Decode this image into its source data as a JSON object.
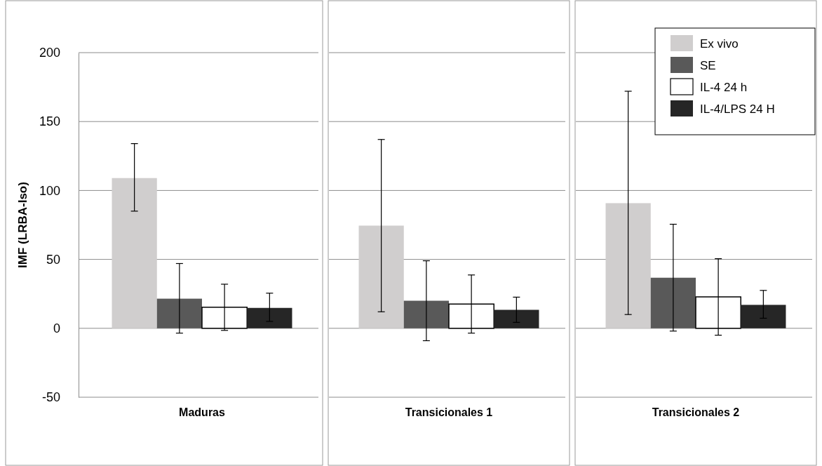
{
  "chart_data": {
    "type": "bar",
    "ylabel": "IMF (LRBA-Iso)",
    "categories": [
      "Maduras",
      "Transicionales 1",
      "Transicionales 2"
    ],
    "ylim": [
      -50,
      200
    ],
    "yticks": [
      -50,
      0,
      50,
      100,
      150,
      200
    ],
    "grid": "y",
    "legend": "top right",
    "series": [
      {
        "name": "Ex vivo",
        "color": "#d0cece",
        "values": [
          109,
          74.5,
          90.8
        ],
        "errors": [
          [
            85,
            134
          ],
          [
            12,
            137
          ],
          [
            10,
            172
          ]
        ]
      },
      {
        "name": "SE",
        "color": "#595959",
        "values": [
          21.5,
          20,
          36.7
        ],
        "errors": [
          [
            -3.5,
            47
          ],
          [
            -9,
            49
          ],
          [
            -2,
            75.5
          ]
        ]
      },
      {
        "name": "IL-4 24 h",
        "color": "#ffffff",
        "values": [
          15.3,
          17.6,
          22.8
        ],
        "errors": [
          [
            -1.5,
            32
          ],
          [
            -3.5,
            38.7
          ],
          [
            -5,
            50.5
          ]
        ]
      },
      {
        "name": "IL-4/LPS 24 H",
        "color": "#262626",
        "values": [
          14.8,
          13.4,
          17
        ],
        "errors": [
          [
            5,
            25.5
          ],
          [
            4.3,
            22.6
          ],
          [
            7.3,
            27.5
          ]
        ]
      }
    ]
  }
}
